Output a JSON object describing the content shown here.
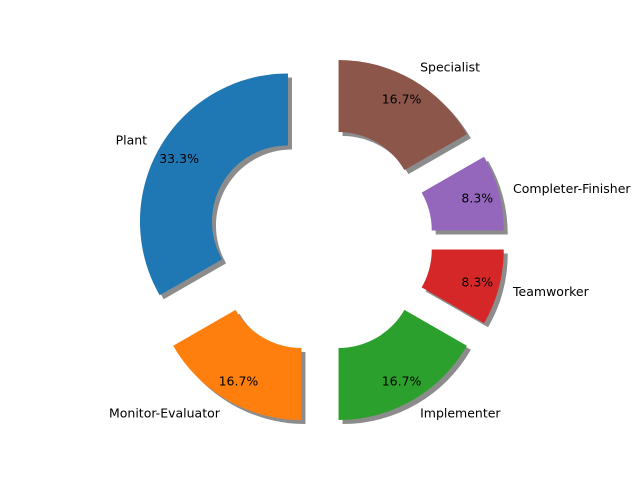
{
  "chart_data": {
    "type": "pie",
    "donut": true,
    "shadow": true,
    "exploded": true,
    "title": "",
    "categories": [
      "Plant",
      "Monitor-Evaluator",
      "Implementer",
      "Teamworker",
      "Completer-Finisher",
      "Specialist"
    ],
    "values": [
      33.3,
      16.7,
      16.7,
      8.3,
      8.3,
      16.7
    ],
    "percent_labels": [
      "33.3%",
      "16.7%",
      "16.7%",
      "8.3%",
      "8.3%",
      "16.7%"
    ],
    "colors": [
      "#1f77b4",
      "#ff7f0e",
      "#2ca02c",
      "#d62728",
      "#9467bd",
      "#8c564b"
    ],
    "start_angle_deg": 90,
    "direction": "counterclockwise"
  }
}
